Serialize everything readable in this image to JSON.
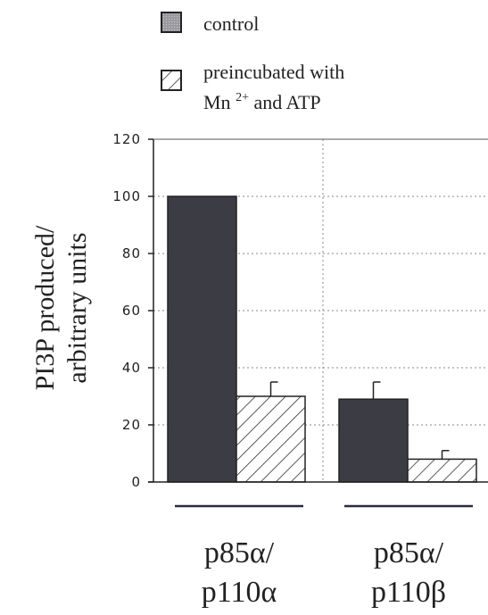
{
  "chart_data": {
    "type": "bar",
    "categories": [
      [
        "p85α/",
        "p110α"
      ],
      [
        "p85α/",
        "p110β"
      ]
    ],
    "series": [
      {
        "name": "control",
        "values": [
          100,
          29
        ],
        "errors": [
          0,
          6
        ],
        "color": "#3c3c44"
      },
      {
        "name": "preincubated with Mn 2+ and ATP",
        "values": [
          30,
          8
        ],
        "errors": [
          5,
          3
        ],
        "color": "#ffffff"
      }
    ],
    "legend": {
      "control": "control",
      "treated_line1": "preincubated with",
      "treated_line2_pre": "Mn ",
      "treated_line2_sup": "2+",
      "treated_line2_post": " and ATP"
    },
    "ylabel_lines": [
      "PI3P produced/",
      "arbitrary units"
    ],
    "yticks": [
      0,
      20,
      40,
      60,
      80,
      100,
      120
    ],
    "ylim": [
      0,
      120
    ],
    "grid": "dotted-horizontal",
    "legend_position": "top-left"
  }
}
